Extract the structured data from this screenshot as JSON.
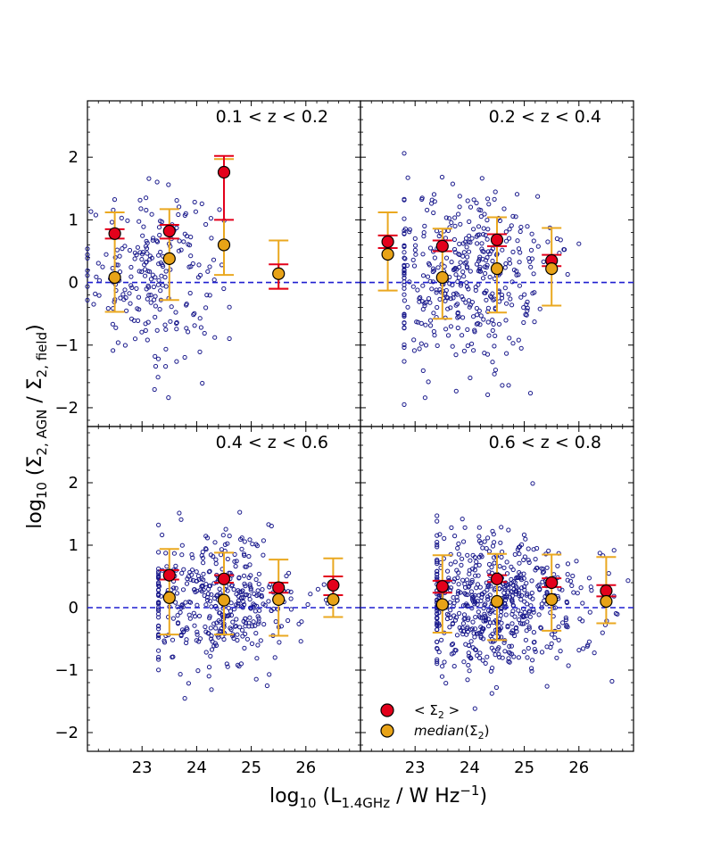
{
  "chart_data": {
    "type": "scatter",
    "layout": "2x2 panels, shared axes",
    "xlabel": "log10 (L1.4GHz / W Hz−1)",
    "ylabel": "log10 (Σ2,AGN / Σ2,field)",
    "xlim": [
      22,
      27
    ],
    "ylim": [
      -2.3,
      2.9
    ],
    "xticks": [
      23,
      24,
      25,
      26
    ],
    "yticks": [
      -2,
      -1,
      0,
      1,
      2
    ],
    "reference_line": {
      "y": 0,
      "style": "dashed",
      "color": "#1f1fd0"
    },
    "colors": {
      "points": "#1a1a8c",
      "mean_marker": "#e3001b",
      "median_marker": "#e8a317",
      "errorbar_mean": "#e3001b",
      "errorbar_median": "#eaa820"
    },
    "legend": {
      "placement": "lower-right panel, bottom-left",
      "entries": [
        {
          "label": "< Σ2 >",
          "marker": "mean"
        },
        {
          "label": "median(Σ2)",
          "marker": "median"
        }
      ]
    },
    "panels": [
      {
        "label": "0.1 < z < 0.2",
        "scatter": {
          "n": 230,
          "x_range": [
            22.0,
            24.6
          ],
          "x_center": 23.2,
          "y_mean": 0.15,
          "y_sd": 0.65
        },
        "bins": [
          {
            "x": 22.5,
            "mean": 0.78,
            "mean_err": [
              0.7,
              0.85
            ],
            "median": 0.08,
            "median_err": [
              -0.47,
              1.12
            ]
          },
          {
            "x": 23.5,
            "mean": 0.82,
            "mean_err": [
              0.7,
              0.92
            ],
            "median": 0.38,
            "median_err": [
              -0.28,
              1.17
            ]
          },
          {
            "x": 24.5,
            "mean": 1.76,
            "mean_err": [
              1.0,
              2.02
            ],
            "median": 0.6,
            "median_err": [
              0.12,
              1.97
            ]
          },
          {
            "x": 25.5,
            "mean": null,
            "mean_err": [
              -0.1,
              0.29
            ],
            "median": 0.14,
            "median_err": [
              -0.1,
              0.67
            ]
          }
        ]
      },
      {
        "label": "0.2 < z < 0.4",
        "scatter": {
          "n": 420,
          "x_range": [
            22.8,
            26.0
          ],
          "x_center": 23.9,
          "y_mean": 0.05,
          "y_sd": 0.7
        },
        "bins": [
          {
            "x": 22.5,
            "mean": 0.65,
            "mean_err": [
              0.55,
              0.75
            ],
            "median": 0.45,
            "median_err": [
              -0.13,
              1.12
            ]
          },
          {
            "x": 23.5,
            "mean": 0.58,
            "mean_err": [
              0.5,
              0.67
            ],
            "median": 0.08,
            "median_err": [
              -0.58,
              0.86
            ]
          },
          {
            "x": 24.5,
            "mean": 0.68,
            "mean_err": [
              0.58,
              0.77
            ],
            "median": 0.22,
            "median_err": [
              -0.48,
              1.04
            ]
          },
          {
            "x": 25.5,
            "mean": 0.35,
            "mean_err": [
              0.26,
              0.44
            ],
            "median": 0.22,
            "median_err": [
              -0.37,
              0.87
            ]
          }
        ]
      },
      {
        "label": "0.4 < z < 0.6",
        "scatter": {
          "n": 420,
          "x_range": [
            23.3,
            26.4
          ],
          "x_center": 24.4,
          "y_mean": 0.05,
          "y_sd": 0.55
        },
        "bins": [
          {
            "x": 23.5,
            "mean": 0.52,
            "mean_err": [
              0.45,
              0.6
            ],
            "median": 0.16,
            "median_err": [
              -0.43,
              0.94
            ]
          },
          {
            "x": 24.5,
            "mean": 0.46,
            "mean_err": [
              0.4,
              0.52
            ],
            "median": 0.12,
            "median_err": [
              -0.43,
              0.88
            ]
          },
          {
            "x": 25.5,
            "mean": 0.32,
            "mean_err": [
              0.24,
              0.4
            ],
            "median": 0.13,
            "median_err": [
              -0.45,
              0.77
            ]
          },
          {
            "x": 26.5,
            "mean": 0.36,
            "mean_err": [
              0.2,
              0.5
            ],
            "median": 0.13,
            "median_err": [
              -0.15,
              0.79
            ]
          }
        ]
      },
      {
        "label": "0.6 < z < 0.8",
        "scatter": {
          "n": 620,
          "x_range": [
            23.4,
            26.9
          ],
          "x_center": 24.5,
          "y_mean": 0.05,
          "y_sd": 0.55
        },
        "bins": [
          {
            "x": 23.5,
            "mean": 0.34,
            "mean_err": [
              0.24,
              0.43
            ],
            "median": 0.05,
            "median_err": [
              -0.4,
              0.84
            ]
          },
          {
            "x": 24.5,
            "mean": 0.46,
            "mean_err": [
              0.41,
              0.52
            ],
            "median": 0.1,
            "median_err": [
              -0.52,
              0.86
            ]
          },
          {
            "x": 25.5,
            "mean": 0.4,
            "mean_err": [
              0.33,
              0.47
            ],
            "median": 0.13,
            "median_err": [
              -0.37,
              0.85
            ]
          },
          {
            "x": 26.5,
            "mean": 0.27,
            "mean_err": [
              0.18,
              0.36
            ],
            "median": 0.1,
            "median_err": [
              -0.25,
              0.81
            ]
          }
        ]
      }
    ]
  }
}
